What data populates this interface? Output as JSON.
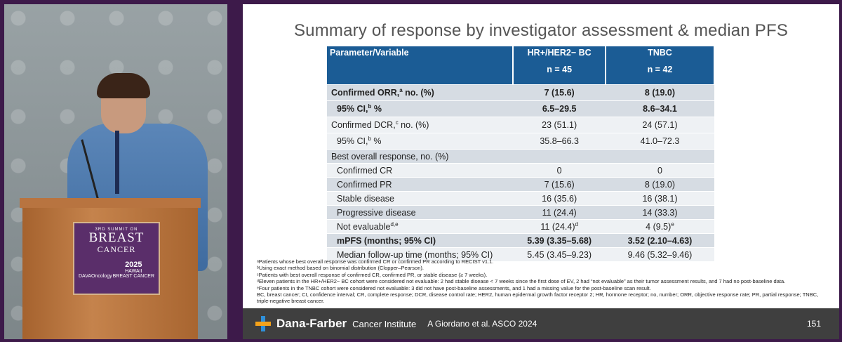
{
  "podium": {
    "line1": "3RD SUMMIT ON",
    "line2": "BREAST",
    "line3": "CANCER",
    "org": "DAVAOncology",
    "year": "2025",
    "place": "HAWAII",
    "sub": "BREAST CANCER"
  },
  "slide": {
    "title": "Summary of response by investigator assessment & median PFS",
    "table": {
      "headers": {
        "param": "Parameter/Variable",
        "col1": "HR+/HER2− BC",
        "col1_n": "n = 45",
        "col2": "TNBC",
        "col2_n": "n = 42"
      },
      "rows": [
        {
          "label": "Confirmed ORR,",
          "sup": "a",
          "label_after": " no. (%)",
          "v1": "7 (15.6)",
          "v2": "8 (19.0)"
        },
        {
          "label": "95% CI,",
          "sup": "b",
          "label_after": " %",
          "v1": "6.5–29.5",
          "v2": "8.6–34.1"
        },
        {
          "label": "Confirmed DCR,",
          "sup": "c",
          "label_after": " no. (%)",
          "v1": "23 (51.1)",
          "v2": "24 (57.1)"
        },
        {
          "label": "95% CI,",
          "sup": "b",
          "label_after": " %",
          "v1": "35.8–66.3",
          "v2": "41.0–72.3"
        },
        {
          "label": "Best overall response, no. (%)",
          "sup": "",
          "label_after": "",
          "v1": "",
          "v2": ""
        },
        {
          "label": "Confirmed CR",
          "sup": "",
          "label_after": "",
          "v1": "0",
          "v2": "0"
        },
        {
          "label": "Confirmed PR",
          "sup": "",
          "label_after": "",
          "v1": "7 (15.6)",
          "v2": "8 (19.0)"
        },
        {
          "label": "Stable disease",
          "sup": "",
          "label_after": "",
          "v1": "16 (35.6)",
          "v2": "16 (38.1)"
        },
        {
          "label": "Progressive disease",
          "sup": "",
          "label_after": "",
          "v1": "11 (24.4)",
          "v2": "14 (33.3)"
        },
        {
          "label": "Not evaluable",
          "sup": "d,e",
          "label_after": "",
          "v1": "11 (24.4)",
          "v1_sup": "d",
          "v2": "4 (9.5)",
          "v2_sup": "e"
        },
        {
          "label": "mPFS (months; 95% CI)",
          "sup": "",
          "label_after": "",
          "v1": "5.39 (3.35–5.68)",
          "v2": "3.52 (2.10–4.63)"
        },
        {
          "label": "Median follow-up time (months; 95% CI)",
          "sup": "",
          "label_after": "",
          "v1": "5.45 (3.45–9.23)",
          "v2": "9.46 (5.32–9.46)"
        }
      ]
    },
    "footnotes": [
      "ᵃPatients whose best overall response was confirmed CR or confirmed PR according to RECIST v1.1.",
      "ᵇUsing exact method based on binomial distribution (Clopper–Pearson).",
      "ᶜPatients with best overall response of confirmed CR, confirmed PR, or stable disease (≥ 7 weeks).",
      "ᵈEleven patients in the HR+/HER2− BC cohort were considered not evaluable: 2 had stable disease < 7 weeks since the first dose of EV, 2 had “not evaluable” as their tumor assessment results, and 7 had no post-baseline data.",
      "ᵉFour patients in the TNBC cohort were considered not evaluable: 3 did not have post-baseline assessments, and 1 had a missing value for the post-baseline scan result.",
      "BC, breast cancer; CI, confidence interval; CR, complete response; DCR, disease control rate; HER2, human epidermal growth factor receptor 2; HR, hormone receptor; no, number; ORR, objective response rate; PR, partial response; TNBC, triple-negative breast cancer."
    ],
    "footer": {
      "brand": "Dana-Farber",
      "institute": "Cancer Institute",
      "citation": "A Giordano et al. ASCO 2024",
      "page": "151"
    }
  }
}
